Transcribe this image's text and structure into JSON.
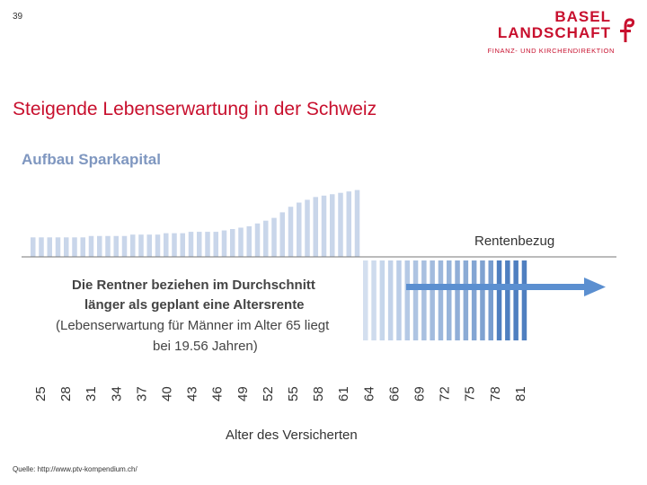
{
  "page_number": "39",
  "logo": {
    "line1": "BASEL",
    "line2": "LANDSCHAFT",
    "line3": "FINANZ- UND KIRCHENDIREKTION"
  },
  "title": "Steigende Lebenserwartung in der Schweiz",
  "source": "Quelle: http://www.ptv-kompendium.ch/",
  "colors": {
    "accent": "#c8102e",
    "saving_bar": "#c9d6ea",
    "pension_bar": "#4f7fc0",
    "pension_bar_light": "#dbe5f3",
    "annotation_text": "#444444",
    "arrow": "#5b8fd0"
  },
  "chart_data": {
    "type": "bar",
    "title": "Aufbau Sparkapital",
    "phase_label": "Rentenbezug",
    "xlabel": "Alter des Versicherten",
    "ylabel": "",
    "tick_labels": [
      "25",
      "28",
      "31",
      "34",
      "37",
      "40",
      "43",
      "46",
      "49",
      "52",
      "55",
      "58",
      "61",
      "64",
      "66",
      "69",
      "72",
      "75",
      "78",
      "81"
    ],
    "annotation": {
      "line1": "Die Rentner beziehen im Durchschnitt",
      "line2": "länger als geplant eine Altersrente",
      "line3": "(Lebenserwartung für Männer im Alter 65 liegt",
      "line4": "bei 19.56 Jahren)"
    },
    "saving_series": {
      "name": "Aufbau Sparkapital",
      "ages": [
        25,
        26,
        27,
        28,
        29,
        30,
        31,
        32,
        33,
        34,
        35,
        36,
        37,
        38,
        39,
        40,
        41,
        42,
        43,
        44,
        45,
        46,
        47,
        48,
        49,
        50,
        51,
        52,
        53,
        54,
        55,
        56,
        57,
        58,
        59,
        60,
        61,
        62,
        63,
        64
      ],
      "values": [
        14,
        14,
        14,
        14,
        14,
        14,
        14,
        15,
        15,
        15,
        15,
        15,
        16,
        16,
        16,
        16,
        17,
        17,
        17,
        18,
        18,
        18,
        18,
        19,
        20,
        21,
        22,
        24,
        26,
        28,
        32,
        36,
        39,
        41,
        43,
        44,
        45,
        46,
        47,
        48
      ]
    },
    "pension_series": {
      "name": "Rentenbezug",
      "ages_start": 65,
      "ages_end": 84,
      "bars_light": 16,
      "bars_dark": 4
    }
  }
}
